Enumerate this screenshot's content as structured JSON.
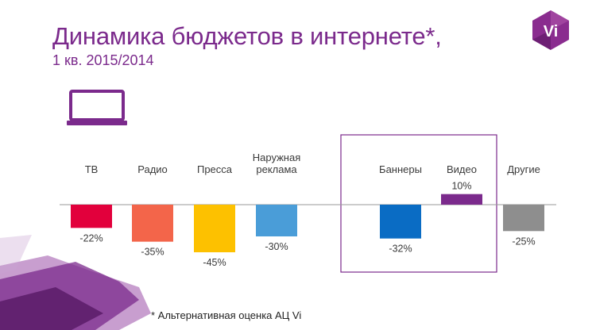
{
  "header": {
    "title": "Динамика бюджетов в интернете*,",
    "subtitle": "1 кв. 2015/2014"
  },
  "logo": {
    "text": "Vi"
  },
  "footnote": "* Альтернативная оценка АЦ Vi",
  "colors": {
    "brand": "#7b2a8c",
    "baseline": "#9a9a9a",
    "highlight_box": "#7b2a8c"
  },
  "chart_data": {
    "type": "bar",
    "title": "Динамика бюджетов в интернете*, 1 кв. 2015/2014",
    "ylabel": "",
    "xlabel": "",
    "ylim": [
      -45,
      10
    ],
    "categories": [
      "ТВ",
      "Радио",
      "Пресса",
      "Наружная\nреклама",
      "Баннеры",
      "Видео",
      "Другие"
    ],
    "values": [
      -22,
      -35,
      -45,
      -30,
      -32,
      10,
      -25
    ],
    "value_labels": [
      "-22%",
      "-35%",
      "-45%",
      "-30%",
      "-32%",
      "10%",
      "-25%"
    ],
    "bar_colors": [
      "#e2003c",
      "#f3654a",
      "#fdc100",
      "#4a9dd8",
      "#0a6cc4",
      "#7b2a8c",
      "#8e8e8e"
    ],
    "highlighted_categories": [
      "Баннеры",
      "Видео"
    ],
    "icon": "laptop-icon"
  }
}
